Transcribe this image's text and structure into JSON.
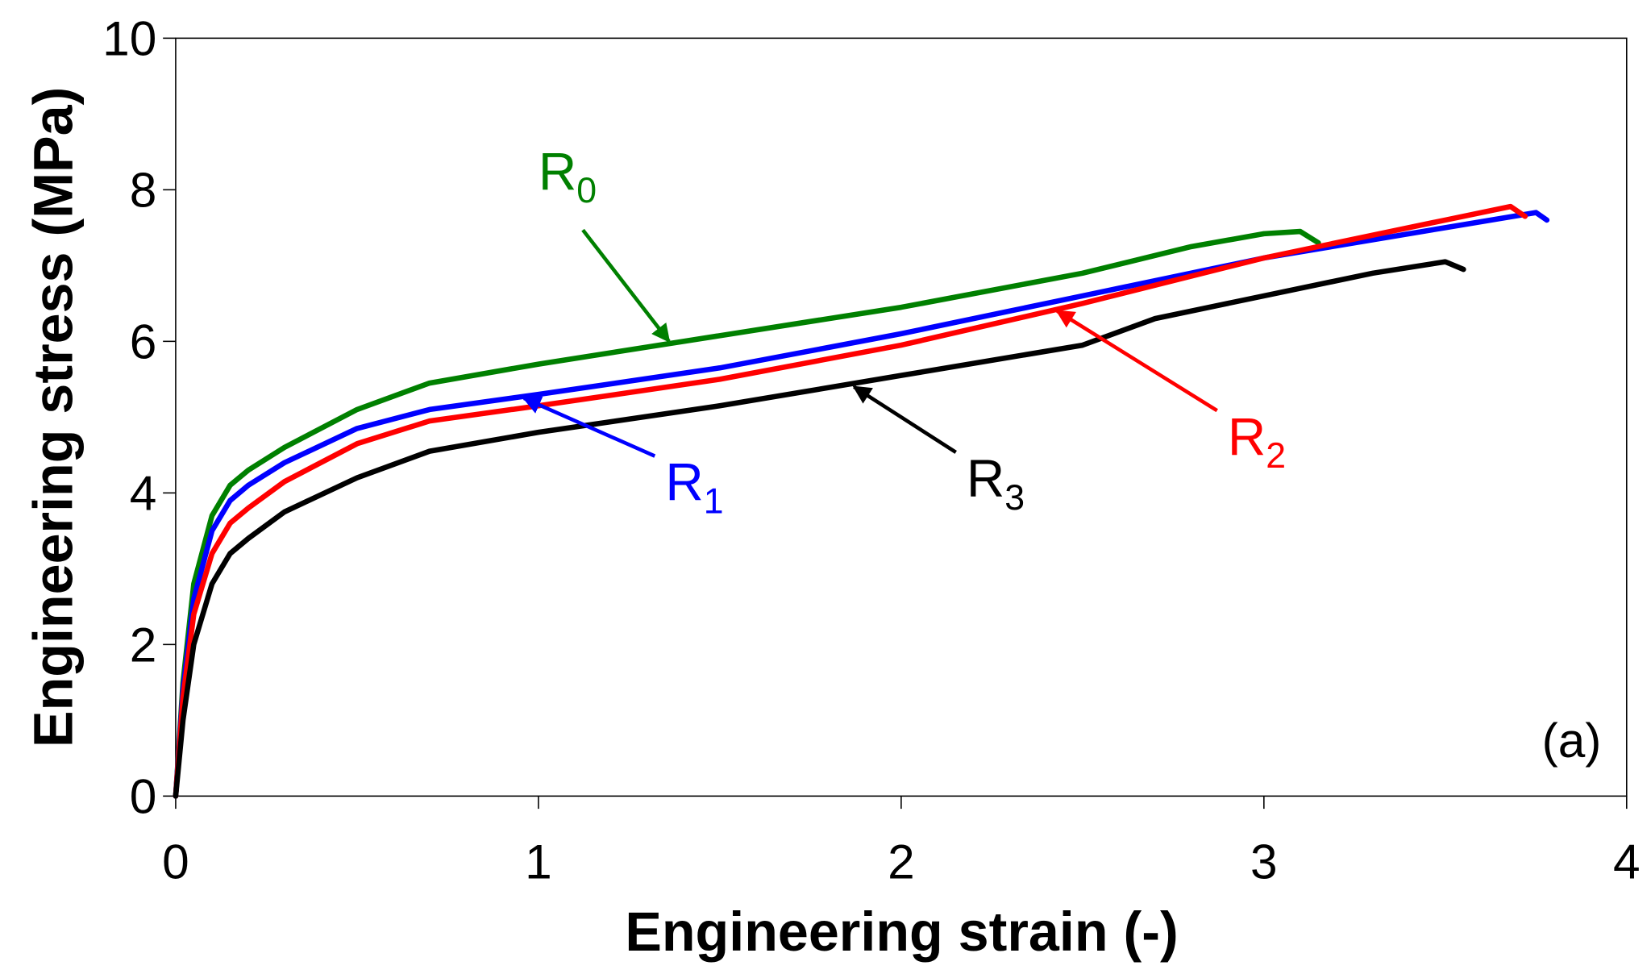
{
  "chart_data": {
    "type": "line",
    "xlabel": "Engineering strain (-)",
    "ylabel": "Engineering stress (MPa)",
    "xlim": [
      0,
      4
    ],
    "ylim": [
      0,
      10
    ],
    "xticks": [
      "0",
      "1",
      "2",
      "3",
      "4"
    ],
    "yticks": [
      "0",
      "2",
      "4",
      "6",
      "8",
      "10"
    ],
    "grid": false,
    "panel_label": "(a)",
    "series": [
      {
        "name": "R0",
        "base": "R",
        "subscript": "0",
        "color": "#008000",
        "x": [
          0,
          0.02,
          0.05,
          0.1,
          0.15,
          0.2,
          0.3,
          0.5,
          0.7,
          1.0,
          1.4,
          2.0,
          2.5,
          2.8,
          3.0,
          3.1,
          3.15
        ],
        "y": [
          0,
          1.5,
          2.8,
          3.7,
          4.1,
          4.3,
          4.6,
          5.1,
          5.45,
          5.7,
          6.0,
          6.45,
          6.9,
          7.25,
          7.42,
          7.45,
          7.3
        ]
      },
      {
        "name": "R1",
        "base": "R",
        "subscript": "1",
        "color": "#0000ff",
        "x": [
          0,
          0.02,
          0.05,
          0.1,
          0.15,
          0.2,
          0.3,
          0.5,
          0.7,
          1.0,
          1.5,
          2.0,
          2.5,
          3.0,
          3.5,
          3.75,
          3.78
        ],
        "y": [
          0,
          1.4,
          2.6,
          3.5,
          3.9,
          4.1,
          4.4,
          4.85,
          5.1,
          5.3,
          5.65,
          6.1,
          6.6,
          7.1,
          7.5,
          7.7,
          7.6
        ]
      },
      {
        "name": "R2",
        "base": "R",
        "subscript": "2",
        "color": "#ff0000",
        "x": [
          0,
          0.02,
          0.05,
          0.1,
          0.15,
          0.2,
          0.3,
          0.5,
          0.7,
          1.0,
          1.5,
          2.0,
          2.5,
          3.0,
          3.5,
          3.68,
          3.72
        ],
        "y": [
          0,
          1.3,
          2.4,
          3.2,
          3.6,
          3.8,
          4.15,
          4.65,
          4.95,
          5.15,
          5.5,
          5.95,
          6.5,
          7.1,
          7.6,
          7.78,
          7.65
        ]
      },
      {
        "name": "R3",
        "base": "R",
        "subscript": "3",
        "color": "#000000",
        "x": [
          0,
          0.02,
          0.05,
          0.1,
          0.15,
          0.2,
          0.3,
          0.5,
          0.7,
          1.0,
          1.5,
          2.0,
          2.5,
          2.7,
          3.0,
          3.3,
          3.5,
          3.55
        ],
        "y": [
          0,
          1.0,
          2.0,
          2.8,
          3.2,
          3.4,
          3.75,
          4.2,
          4.55,
          4.8,
          5.15,
          5.55,
          5.95,
          6.3,
          6.6,
          6.9,
          7.05,
          6.95
        ]
      }
    ],
    "annotations": [
      {
        "series": "R0",
        "label_at": [
          1.0,
          8.0
        ],
        "arrow_to": [
          1.36,
          6.0
        ]
      },
      {
        "series": "R1",
        "label_at": [
          1.35,
          3.9
        ],
        "arrow_to": [
          0.96,
          5.25
        ]
      },
      {
        "series": "R2",
        "label_at": [
          2.9,
          4.5
        ],
        "arrow_to": [
          2.43,
          6.4
        ]
      },
      {
        "series": "R3",
        "label_at": [
          2.18,
          3.95
        ],
        "arrow_to": [
          1.87,
          5.4
        ]
      }
    ]
  }
}
